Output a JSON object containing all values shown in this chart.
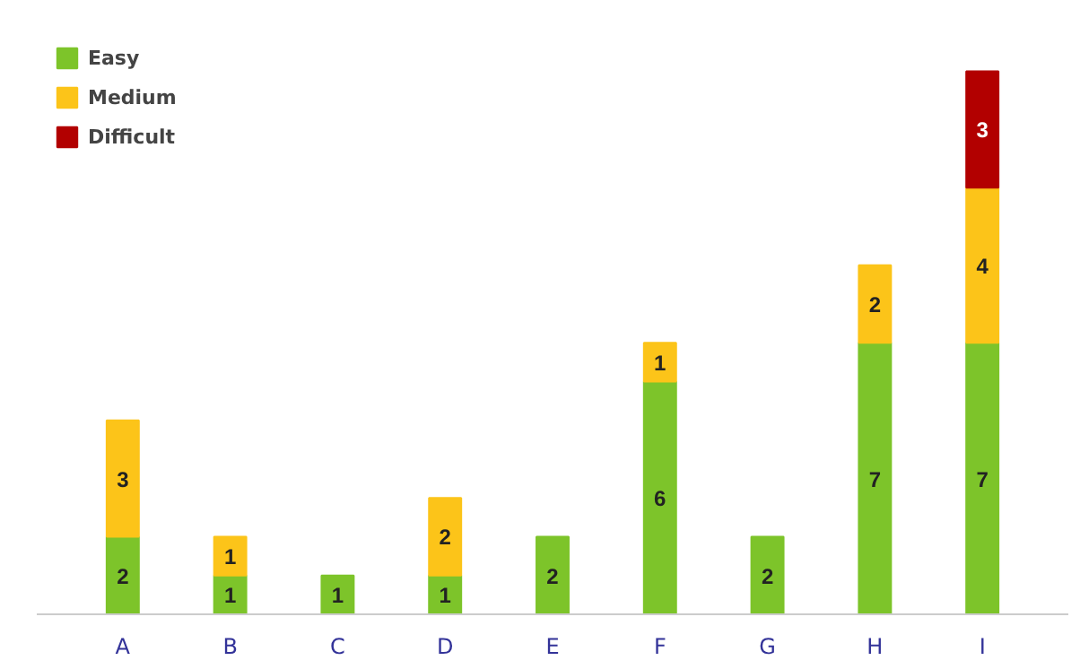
{
  "chart_data": {
    "type": "bar",
    "stacked": true,
    "categories": [
      "A",
      "B",
      "C",
      "D",
      "E",
      "F",
      "G",
      "H",
      "I"
    ],
    "series": [
      {
        "name": "Easy",
        "color": "#7dc42a",
        "values": [
          2,
          1,
          1,
          1,
          2,
          6,
          2,
          7,
          7
        ]
      },
      {
        "name": "Medium",
        "color": "#fcc419",
        "values": [
          3,
          1,
          null,
          2,
          null,
          1,
          null,
          2,
          4
        ]
      },
      {
        "name": "Difficult",
        "color": "#b20000",
        "values": [
          null,
          null,
          null,
          null,
          null,
          null,
          null,
          null,
          3
        ]
      }
    ],
    "data_labels": true,
    "legend": "top left"
  }
}
